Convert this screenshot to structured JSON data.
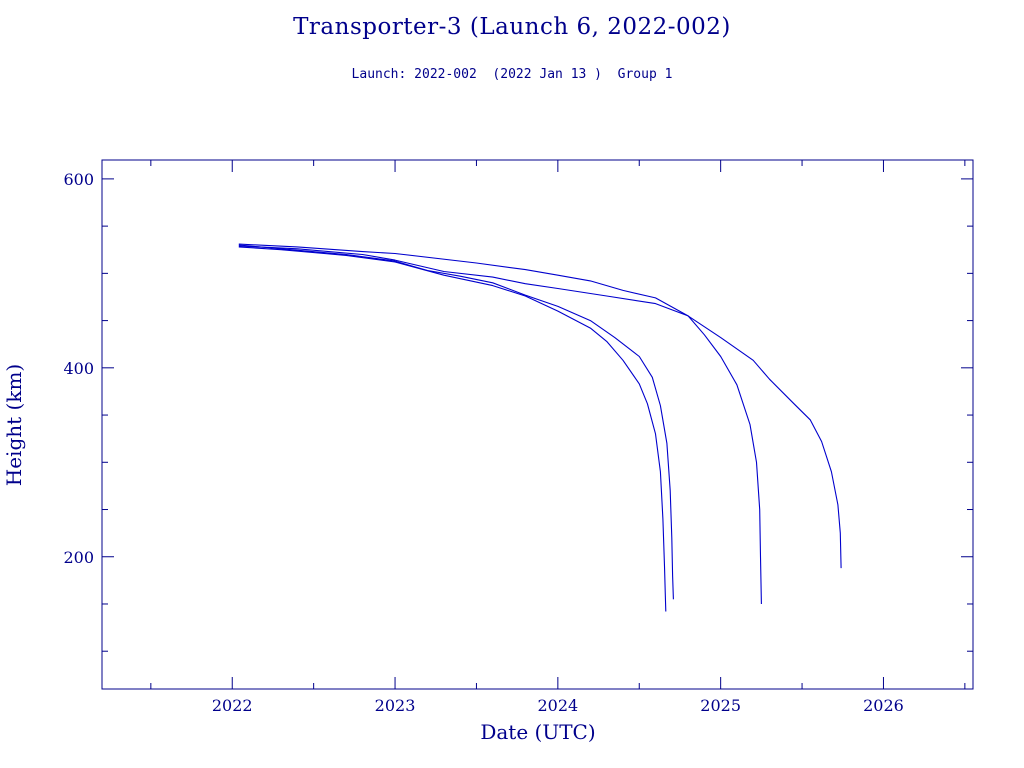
{
  "chart_data": {
    "type": "line",
    "title": "Transporter-3 (Launch 6, 2022-002)",
    "subtitle": "Launch: 2022-002  (2022 Jan 13 )  Group 1",
    "xlabel": "Date (UTC)",
    "ylabel": "Height (km)",
    "xlim": [
      2021.2,
      2026.55
    ],
    "ylim": [
      60,
      620
    ],
    "x_ticks": [
      2022,
      2023,
      2024,
      2025,
      2026
    ],
    "x_tick_labels": [
      "2022",
      "2023",
      "2024",
      "2025",
      "2026"
    ],
    "y_ticks": [
      200,
      400,
      600
    ],
    "y_tick_labels": [
      "200",
      "400",
      "600"
    ],
    "grid": false,
    "line_color": "#0000cd",
    "axis_color": "#00008b",
    "series": [
      {
        "points": [
          [
            2022.04,
            528
          ],
          [
            2022.3,
            525
          ],
          [
            2022.7,
            519
          ],
          [
            2023.0,
            512
          ],
          [
            2023.3,
            498
          ],
          [
            2023.6,
            487
          ],
          [
            2023.8,
            476
          ],
          [
            2024.0,
            460
          ],
          [
            2024.2,
            442
          ],
          [
            2024.3,
            428
          ],
          [
            2024.4,
            408
          ],
          [
            2024.5,
            383
          ],
          [
            2024.55,
            362
          ],
          [
            2024.6,
            330
          ],
          [
            2024.63,
            290
          ],
          [
            2024.645,
            240
          ],
          [
            2024.655,
            190
          ],
          [
            2024.66,
            160
          ],
          [
            2024.663,
            142
          ]
        ]
      },
      {
        "points": [
          [
            2022.04,
            530
          ],
          [
            2022.3,
            526
          ],
          [
            2022.7,
            520
          ],
          [
            2023.0,
            513
          ],
          [
            2023.2,
            503
          ],
          [
            2023.4,
            497
          ],
          [
            2023.6,
            490
          ],
          [
            2023.8,
            477
          ],
          [
            2024.0,
            465
          ],
          [
            2024.2,
            450
          ],
          [
            2024.35,
            432
          ],
          [
            2024.5,
            412
          ],
          [
            2024.58,
            390
          ],
          [
            2024.63,
            360
          ],
          [
            2024.67,
            320
          ],
          [
            2024.69,
            270
          ],
          [
            2024.7,
            220
          ],
          [
            2024.705,
            180
          ],
          [
            2024.71,
            155
          ]
        ]
      },
      {
        "points": [
          [
            2022.04,
            531
          ],
          [
            2022.4,
            528
          ],
          [
            2022.8,
            523
          ],
          [
            2023.0,
            521
          ],
          [
            2023.5,
            511
          ],
          [
            2023.8,
            504
          ],
          [
            2024.0,
            498
          ],
          [
            2024.2,
            492
          ],
          [
            2024.4,
            482
          ],
          [
            2024.6,
            474
          ],
          [
            2024.8,
            455
          ],
          [
            2024.9,
            435
          ],
          [
            2025.0,
            412
          ],
          [
            2025.1,
            382
          ],
          [
            2025.18,
            340
          ],
          [
            2025.22,
            300
          ],
          [
            2025.24,
            250
          ],
          [
            2025.245,
            200
          ],
          [
            2025.25,
            150
          ]
        ]
      },
      {
        "points": [
          [
            2022.04,
            529
          ],
          [
            2022.4,
            526
          ],
          [
            2022.8,
            520
          ],
          [
            2023.0,
            514
          ],
          [
            2023.3,
            502
          ],
          [
            2023.6,
            496
          ],
          [
            2023.8,
            489
          ],
          [
            2024.0,
            484
          ],
          [
            2024.3,
            476
          ],
          [
            2024.6,
            468
          ],
          [
            2024.8,
            455
          ],
          [
            2025.0,
            432
          ],
          [
            2025.2,
            408
          ],
          [
            2025.3,
            388
          ],
          [
            2025.45,
            362
          ],
          [
            2025.55,
            345
          ],
          [
            2025.62,
            322
          ],
          [
            2025.68,
            290
          ],
          [
            2025.72,
            255
          ],
          [
            2025.735,
            225
          ],
          [
            2025.74,
            188
          ]
        ]
      }
    ]
  }
}
